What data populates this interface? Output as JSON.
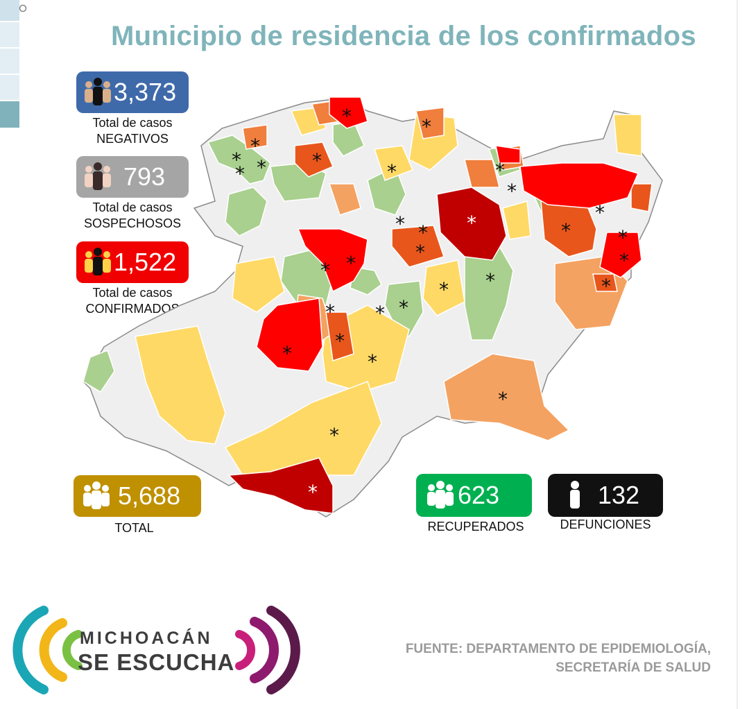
{
  "title": "Municipio de residencia de los confirmados",
  "stats": {
    "negativos": {
      "value": "3,373",
      "caption_line1": "Total de casos",
      "caption_line2": "NEGATIVOS",
      "color": "#3f6aaa"
    },
    "sospechosos": {
      "value": "793",
      "caption_line1": "Total de casos",
      "caption_line2": "SOSPECHOSOS",
      "color": "#a5a5a5"
    },
    "confirmados": {
      "value": "1,522",
      "caption_line1": "Total de casos",
      "caption_line2": "CONFIRMADOS",
      "color": "#f00000"
    },
    "total": {
      "value": "5,688",
      "caption": "TOTAL",
      "color": "#bf9000"
    },
    "recuperados": {
      "value": "623",
      "caption": "RECUPERADOS",
      "color": "#00b050"
    },
    "defunciones": {
      "value": "132",
      "caption": "DEFUNCIONES",
      "color": "#111111"
    }
  },
  "map_colors": {
    "none": "#efefef",
    "green": "#a9d08e",
    "yellow": "#ffd966",
    "orange_light": "#f4a261",
    "orange": "#f07e3c",
    "orange_dark": "#e8561c",
    "red": "#ff0000",
    "dark_red": "#c00000",
    "border": "#ffffff",
    "outline": "#8a8a8a"
  },
  "map_marker": "*",
  "logo": {
    "line1": "MICHOACÁN",
    "line2": "SE ESCUCHA"
  },
  "source": {
    "line1": "FUENTE: DEPARTAMENTO DE EPIDEMIOLOGÍA,",
    "line2": "SECRETARÍA DE SALUD"
  }
}
